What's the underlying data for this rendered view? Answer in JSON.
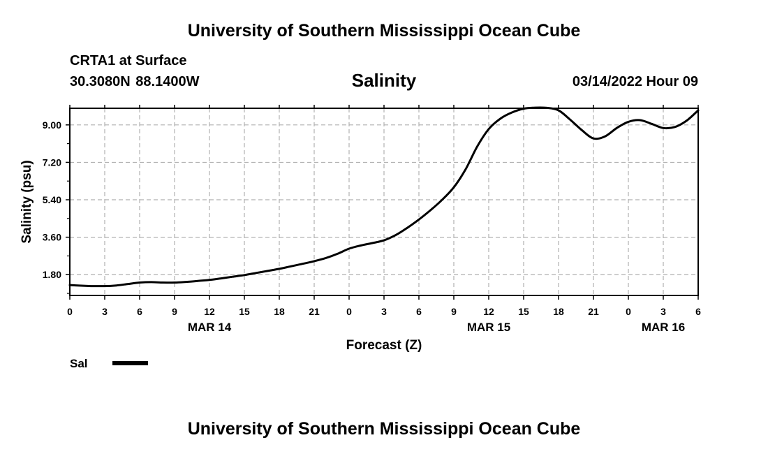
{
  "header": {
    "title": "University of Southern Mississippi Ocean Cube",
    "station": "CRTA1 at Surface",
    "coords": "30.3080N  88.1400W",
    "subtitle": "Salinity",
    "timestamp": "03/14/2022 Hour 09"
  },
  "footer": {
    "title": "University of Southern Mississippi Ocean Cube"
  },
  "chart_data": {
    "type": "line",
    "title": "Salinity",
    "xlabel": "Forecast (Z)",
    "ylabel": "Salinity (psu)",
    "xlim": [
      0,
      54
    ],
    "ylim": [
      0.8,
      9.8
    ],
    "x_tick_labels": [
      "0",
      "3",
      "6",
      "9",
      "12",
      "15",
      "18",
      "21",
      "0",
      "3",
      "6",
      "9",
      "12",
      "15",
      "18",
      "21",
      "0",
      "3",
      "6"
    ],
    "y_ticks": [
      1.8,
      3.6,
      5.4,
      7.2,
      9.0
    ],
    "y_tick_labels": [
      "1.80",
      "3.60",
      "5.40",
      "7.20",
      "9.00"
    ],
    "date_labels": [
      {
        "x": 12,
        "label": "MAR 14"
      },
      {
        "x": 36,
        "label": "MAR 15"
      },
      {
        "x": 51,
        "label": "MAR 16"
      }
    ],
    "grid": true,
    "legend": [
      {
        "name": "Sal",
        "color": "#000000"
      }
    ],
    "series": [
      {
        "name": "Sal",
        "x": [
          0,
          1,
          2,
          3,
          4,
          5,
          6,
          7,
          8,
          9,
          10,
          11,
          12,
          13,
          14,
          15,
          16,
          17,
          18,
          19,
          20,
          21,
          22,
          23,
          24,
          25,
          26,
          27,
          28,
          29,
          30,
          31,
          32,
          33,
          34,
          35,
          36,
          37,
          38,
          39,
          40,
          41,
          42,
          43,
          44,
          45,
          46,
          47,
          48,
          49,
          50,
          51,
          52,
          53,
          54
        ],
        "values": [
          1.3,
          1.27,
          1.25,
          1.25,
          1.28,
          1.35,
          1.42,
          1.44,
          1.42,
          1.42,
          1.45,
          1.5,
          1.55,
          1.62,
          1.7,
          1.78,
          1.88,
          1.98,
          2.08,
          2.2,
          2.32,
          2.45,
          2.6,
          2.8,
          3.05,
          3.2,
          3.32,
          3.45,
          3.7,
          4.05,
          4.45,
          4.9,
          5.4,
          6.0,
          6.85,
          7.95,
          8.8,
          9.3,
          9.6,
          9.78,
          9.83,
          9.82,
          9.7,
          9.25,
          8.75,
          8.35,
          8.45,
          8.85,
          9.15,
          9.23,
          9.05,
          8.85,
          8.9,
          9.2,
          9.7
        ]
      }
    ]
  }
}
